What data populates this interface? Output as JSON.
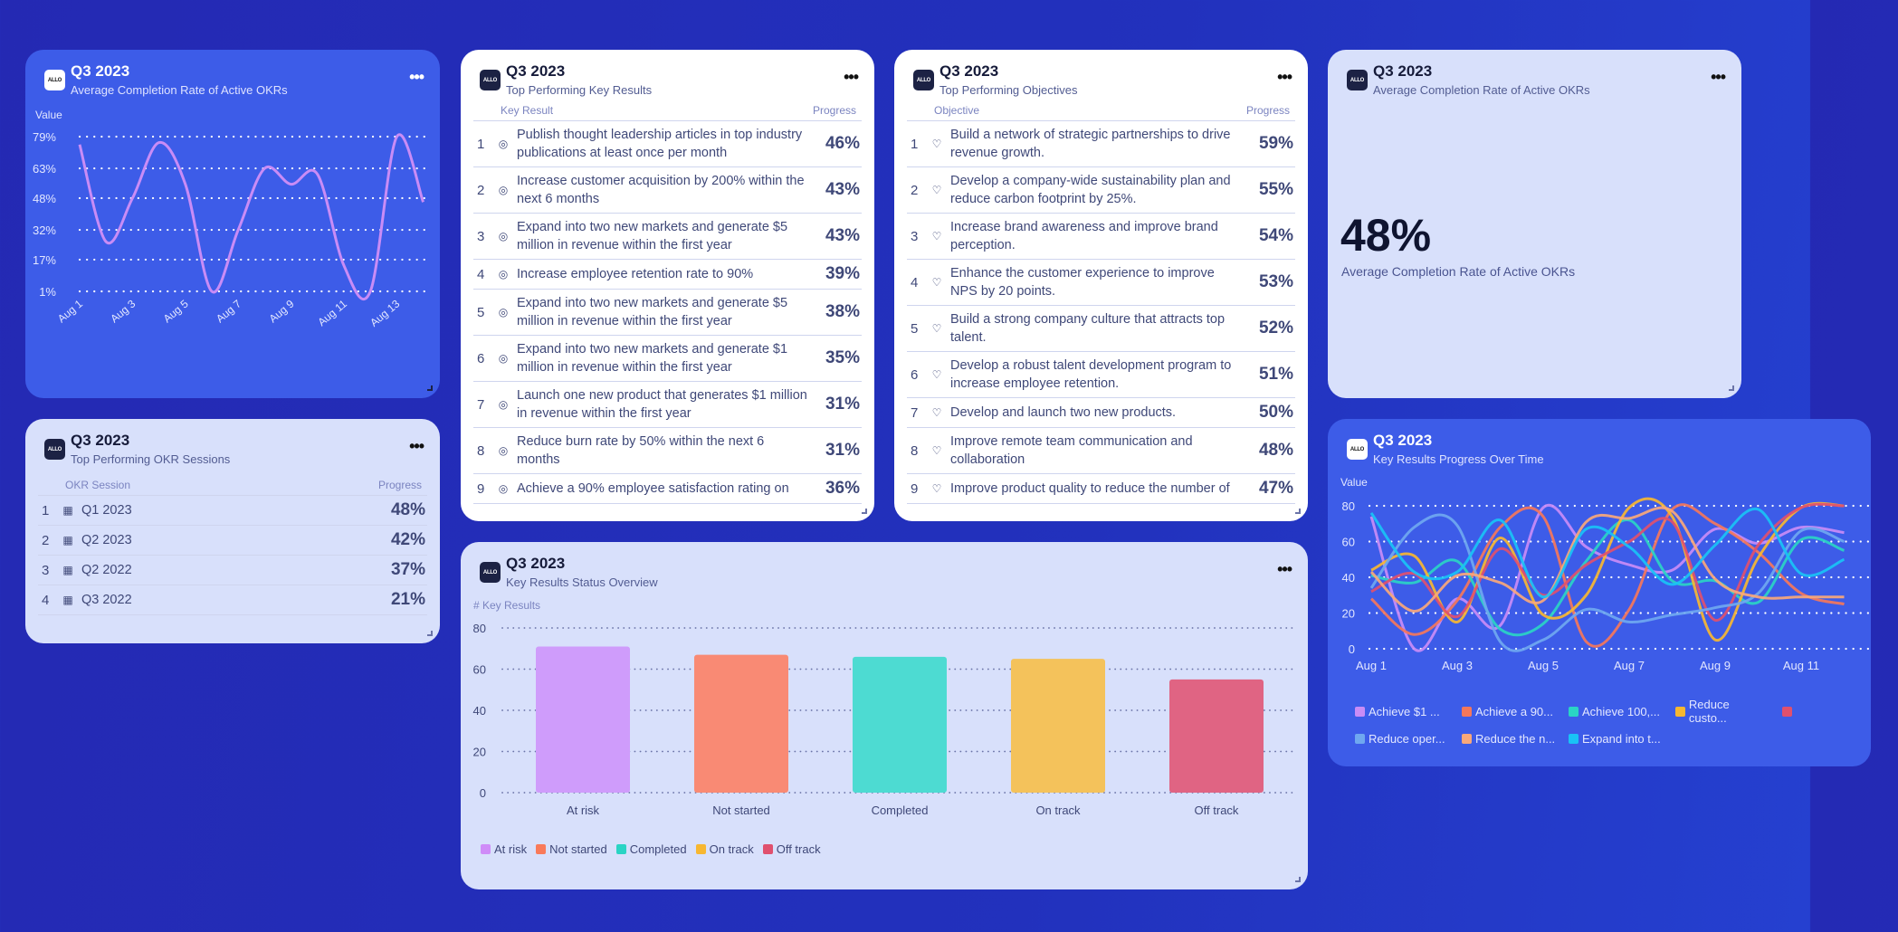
{
  "cards": {
    "avg_line": {
      "period": "Q3 2023",
      "subtitle": "Average Completion Rate of Active OKRs",
      "more_icon": "ellipsis-icon"
    },
    "key_results": {
      "period": "Q3 2023",
      "subtitle": "Top Performing Key Results",
      "col_name": "Key Result",
      "col_progress": "Progress",
      "rows": [
        {
          "rank": "1",
          "text": "Publish thought leadership articles in top industry publications at least once per month",
          "progress": "46%"
        },
        {
          "rank": "2",
          "text": "Increase customer acquisition by 200% within the next 6 months",
          "progress": "43%"
        },
        {
          "rank": "3",
          "text": "Expand into two new markets and generate $5 million in revenue within the first year",
          "progress": "43%"
        },
        {
          "rank": "4",
          "text": "Increase employee retention rate to 90%",
          "progress": "39%"
        },
        {
          "rank": "5",
          "text": "Expand into two new markets and generate $5 million in revenue within the first year",
          "progress": "38%"
        },
        {
          "rank": "6",
          "text": "Expand into two new markets and generate $1 million in revenue within the first year",
          "progress": "35%"
        },
        {
          "rank": "7",
          "text": "Launch one new product that generates $1 million in revenue within the first year",
          "progress": "31%"
        },
        {
          "rank": "8",
          "text": "Reduce burn rate by 50% within the next 6 months",
          "progress": "31%"
        },
        {
          "rank": "9",
          "text": "Achieve a 90% employee satisfaction rating on",
          "progress": "36%"
        }
      ]
    },
    "objectives": {
      "period": "Q3 2023",
      "subtitle": "Top Performing Objectives",
      "col_name": "Objective",
      "col_progress": "Progress",
      "rows": [
        {
          "rank": "1",
          "text": "Build a network of strategic partnerships to drive revenue growth.",
          "progress": "59%"
        },
        {
          "rank": "2",
          "text": "Develop a company-wide sustainability plan and reduce carbon footprint by 25%.",
          "progress": "55%"
        },
        {
          "rank": "3",
          "text": "Increase brand awareness and improve brand perception.",
          "progress": "54%"
        },
        {
          "rank": "4",
          "text": "Enhance the customer experience to improve NPS by 20 points.",
          "progress": "53%"
        },
        {
          "rank": "5",
          "text": "Build a strong company culture that attracts top talent.",
          "progress": "52%"
        },
        {
          "rank": "6",
          "text": "Develop a robust talent development program to increase employee retention.",
          "progress": "51%"
        },
        {
          "rank": "7",
          "text": "Develop and launch two new products.",
          "progress": "50%"
        },
        {
          "rank": "8",
          "text": "Improve remote team communication and collaboration",
          "progress": "48%"
        },
        {
          "rank": "9",
          "text": "Improve product quality to reduce the number of",
          "progress": "47%"
        }
      ]
    },
    "kpi": {
      "period": "Q3 2023",
      "subtitle": "Average Completion Rate of Active OKRs",
      "value": "48%",
      "caption": "Average Completion Rate of Active OKRs"
    },
    "sessions": {
      "period": "Q3 2023",
      "subtitle": "Top Performing OKR Sessions",
      "col_name": "OKR Session",
      "col_progress": "Progress",
      "rows": [
        {
          "rank": "1",
          "text": "Q1 2023",
          "progress": "48%"
        },
        {
          "rank": "2",
          "text": "Q2 2023",
          "progress": "42%"
        },
        {
          "rank": "3",
          "text": "Q2 2022",
          "progress": "37%"
        },
        {
          "rank": "4",
          "text": "Q3 2022",
          "progress": "21%"
        }
      ]
    },
    "status": {
      "period": "Q3 2023",
      "subtitle": "Key Results Status Overview"
    },
    "kr_progress": {
      "period": "Q3 2023",
      "subtitle": "Key Results Progress Over Time"
    }
  },
  "logo_text": "ALLO",
  "chart_data": [
    {
      "type": "line",
      "ylabel": "Value",
      "x": [
        "Aug 1",
        "Aug 2",
        "Aug 3",
        "Aug 4",
        "Aug 5",
        "Aug 6",
        "Aug 7",
        "Aug 8",
        "Aug 9",
        "Aug 10",
        "Aug 11",
        "Aug 12",
        "Aug 13",
        "Aug 14"
      ],
      "xticks": [
        "Aug 1",
        "Aug 3",
        "Aug 5",
        "Aug 7",
        "Aug 9",
        "Aug 11",
        "Aug 13"
      ],
      "yticks": [
        "79%",
        "63%",
        "48%",
        "32%",
        "17%",
        "1%"
      ],
      "yticks_values": [
        79,
        63,
        48,
        32,
        17,
        1
      ],
      "ylim": [
        1,
        79
      ],
      "values": [
        75,
        26,
        48,
        76,
        55,
        1,
        32,
        63,
        55,
        60,
        14,
        1,
        79,
        46
      ],
      "color": "#c98cf6"
    },
    {
      "type": "bar",
      "ylabel": "# Key Results",
      "ylim": [
        0,
        80
      ],
      "yticks": [
        "80",
        "60",
        "40",
        "20",
        "0"
      ],
      "yticks_values": [
        80,
        60,
        40,
        20,
        0
      ],
      "categories": [
        "At risk",
        "Not started",
        "Completed",
        "On track",
        "Off track"
      ],
      "values": [
        71,
        67,
        66,
        65,
        55
      ],
      "colors": [
        "#cf9cfb",
        "#f98a74",
        "#4ddbd2",
        "#f4c25b",
        "#e06483"
      ],
      "legend": [
        "At risk",
        "Not started",
        "Completed",
        "On track",
        "Off track"
      ],
      "legend_colors": [
        "#cf8cf8",
        "#f97a5a",
        "#2ad4c4",
        "#f7b731",
        "#e0506e"
      ]
    },
    {
      "type": "line",
      "ylabel": "Value",
      "ylim": [
        0,
        80
      ],
      "yticks": [
        "80",
        "60",
        "40",
        "20",
        "0"
      ],
      "yticks_values": [
        80,
        60,
        40,
        20,
        0
      ],
      "x": [
        "Aug 1",
        "Aug 2",
        "Aug 3",
        "Aug 4",
        "Aug 5",
        "Aug 6",
        "Aug 7",
        "Aug 8",
        "Aug 9",
        "Aug 10",
        "Aug 11",
        "Aug 12"
      ],
      "xticks": [
        "Aug 1",
        "Aug 3",
        "Aug 5",
        "Aug 7",
        "Aug 9",
        "Aug 11"
      ],
      "series": [
        {
          "name": "Achieve $1 ...",
          "color": "#c98cf6",
          "values": [
            74,
            0,
            28,
            13,
            79,
            57,
            47,
            44,
            67,
            59,
            68,
            65
          ]
        },
        {
          "name": "Achieve a 90...",
          "color": "#f5775a",
          "values": [
            28,
            8,
            27,
            68,
            74,
            4,
            22,
            78,
            70,
            54,
            31,
            25
          ]
        },
        {
          "name": "Achieve 100,...",
          "color": "#2ad4c4",
          "values": [
            41,
            37,
            49,
            11,
            14,
            49,
            72,
            38,
            38,
            26,
            61,
            55
          ]
        },
        {
          "name": "Reduce custo...",
          "color": "#f7b731",
          "values": [
            44,
            52,
            15,
            62,
            19,
            30,
            79,
            74,
            5,
            51,
            79,
            80
          ]
        },
        {
          "name": "",
          "color": "#e0506e",
          "values": [
            32,
            42,
            18,
            56,
            30,
            47,
            60,
            71,
            16,
            58,
            79,
            80
          ]
        },
        {
          "name": "Reduce oper...",
          "color": "#6fa8f0",
          "values": [
            34,
            68,
            69,
            4,
            5,
            22,
            15,
            19,
            23,
            31,
            66,
            60
          ]
        },
        {
          "name": "Reduce the n...",
          "color": "#f9a87a",
          "values": [
            43,
            21,
            41,
            37,
            27,
            71,
            73,
            77,
            39,
            29,
            29,
            29
          ]
        },
        {
          "name": "Expand into t...",
          "color": "#19c3f5",
          "values": [
            76,
            43,
            43,
            72,
            29,
            67,
            57,
            36,
            58,
            78,
            42,
            50
          ]
        }
      ]
    }
  ]
}
